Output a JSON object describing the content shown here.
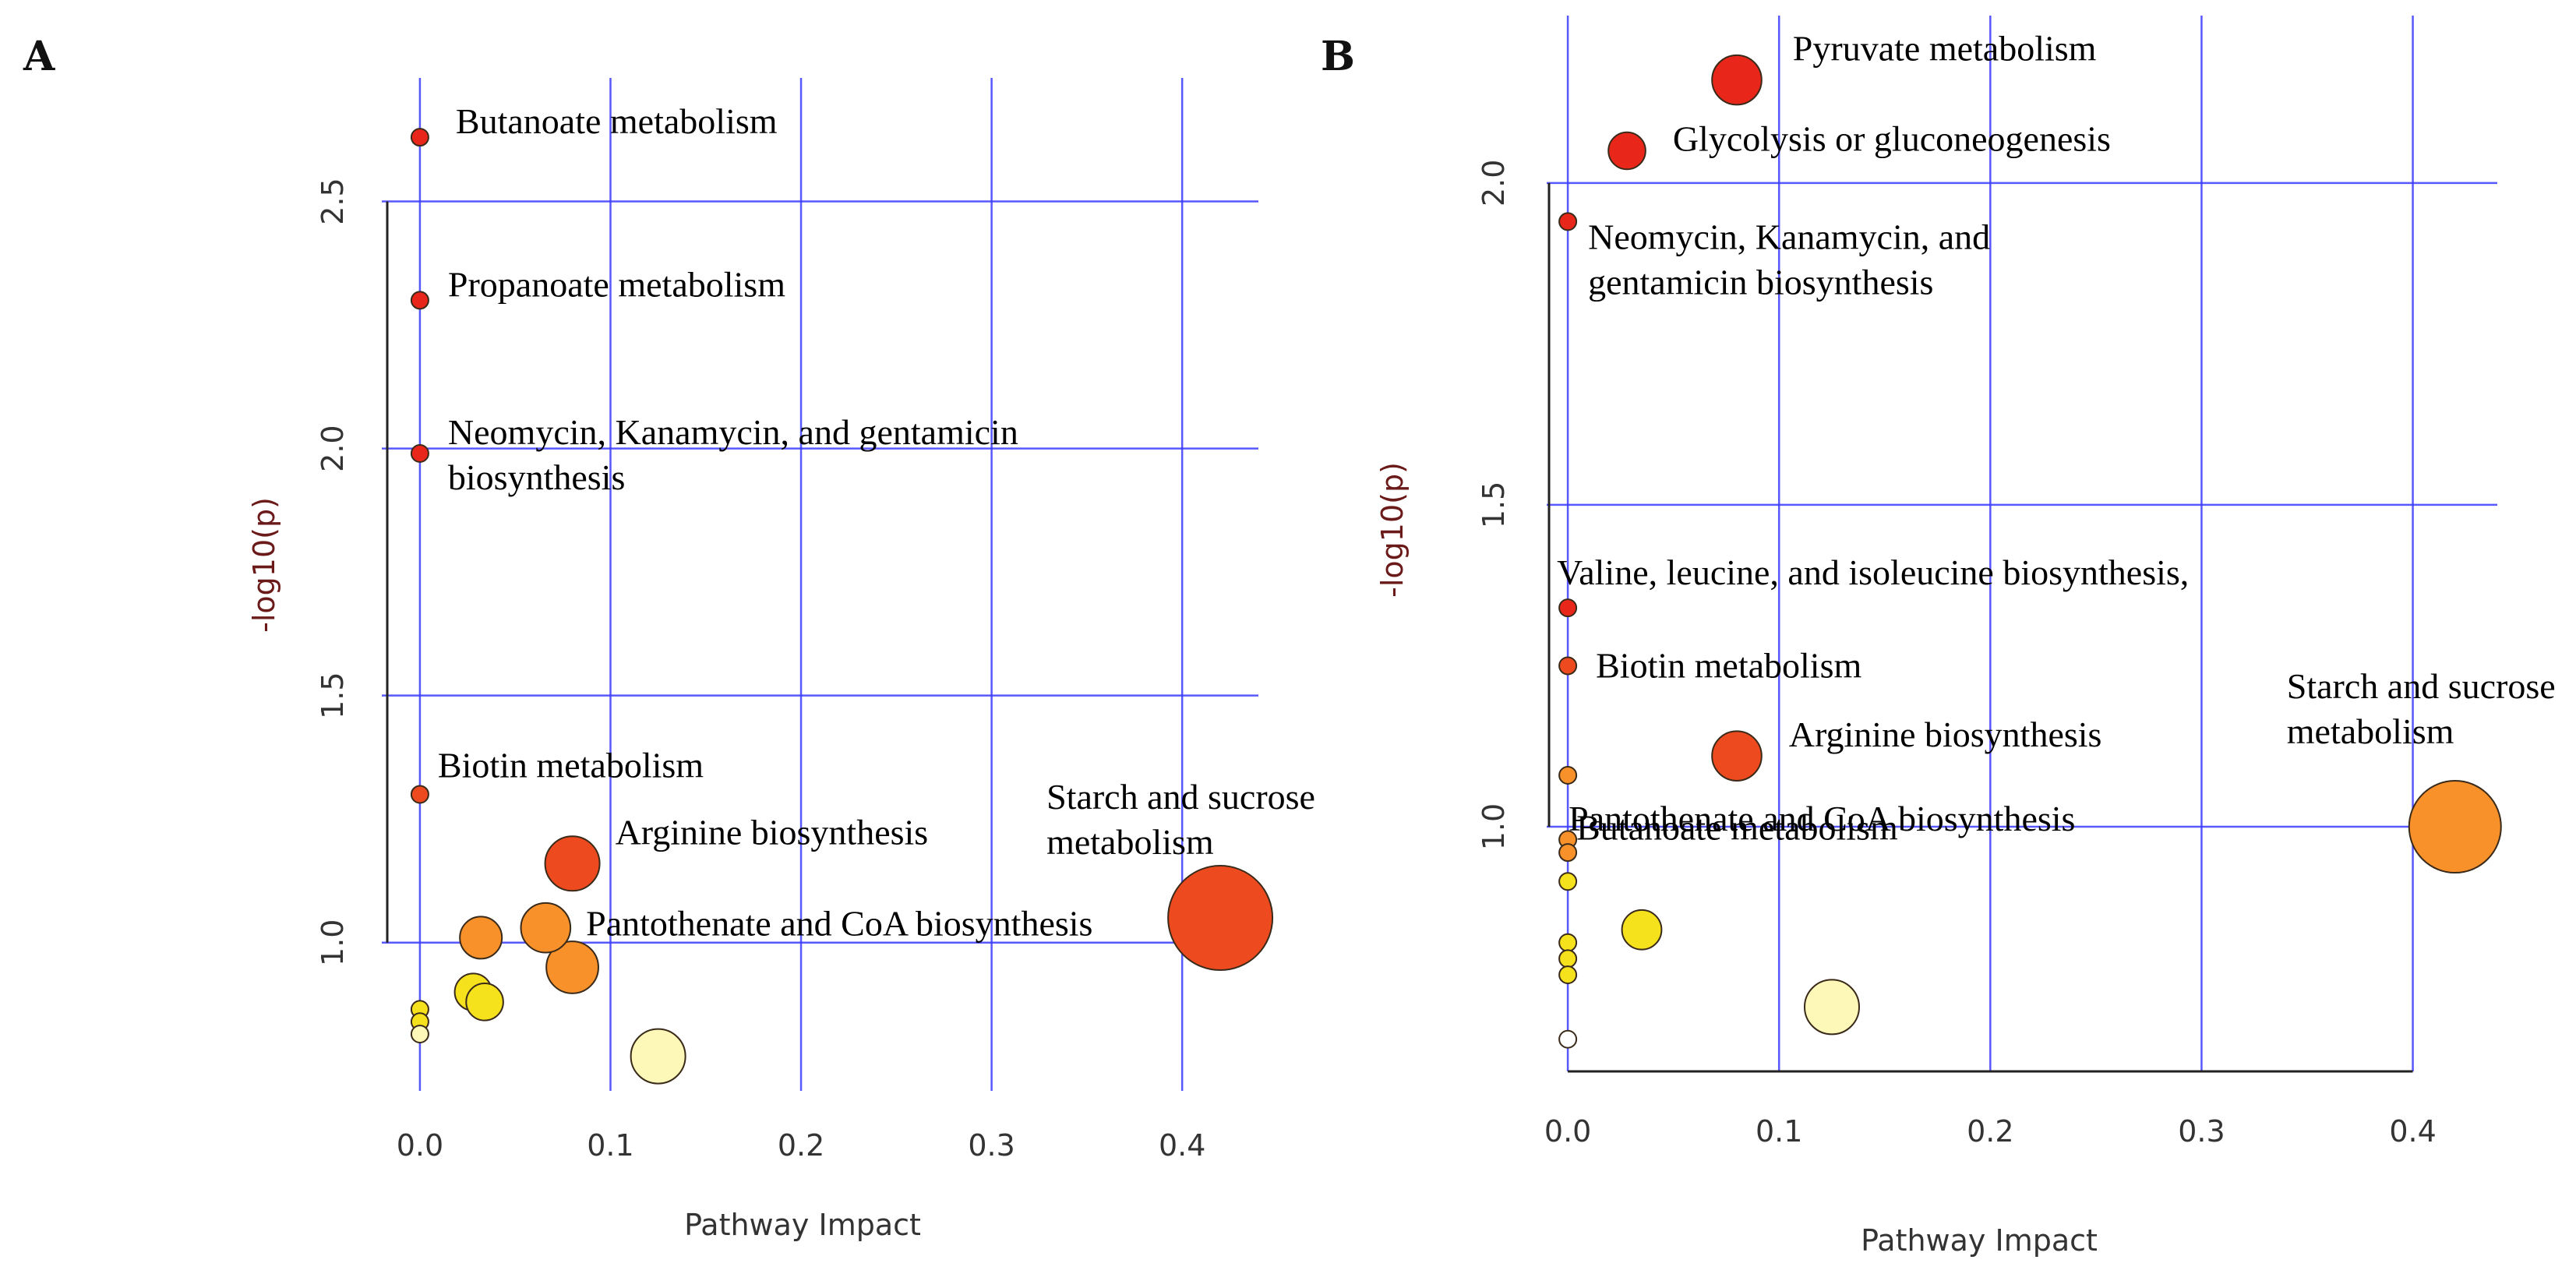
{
  "colors": {
    "grid": "#3b3bff",
    "axis": "#222222",
    "red": "#e8271a",
    "red_orange": "#ee4a1f",
    "orange": "#f8912a",
    "yellow": "#f5e11c",
    "light_yellow": "#fdf7b8",
    "white": "#ffffff"
  },
  "chart_data": [
    {
      "panel": "A",
      "type": "scatter",
      "xlabel": "Pathway Impact",
      "ylabel": "-log10(p)",
      "xlim": [
        -0.02,
        0.44
      ],
      "ylim": [
        0.7,
        2.75
      ],
      "xticks": [
        "0.0",
        "0.1",
        "0.2",
        "0.3",
        "0.4"
      ],
      "yticks": [
        "1.0",
        "1.5",
        "2.0",
        "2.5"
      ],
      "points": [
        {
          "x": 0.0,
          "y": 2.63,
          "size": 1,
          "color": "red",
          "label": [
            "Butanoate metabolism"
          ]
        },
        {
          "x": 0.0,
          "y": 2.3,
          "size": 1,
          "color": "red",
          "label": [
            "Propanoate metabolism"
          ]
        },
        {
          "x": 0.0,
          "y": 1.99,
          "size": 1,
          "color": "red",
          "label": [
            "Neomycin, Kanamycin, and gentamicin",
            "biosynthesis"
          ]
        },
        {
          "x": 0.0,
          "y": 1.3,
          "size": 1,
          "color": "red_orange",
          "label": [
            "Biotin metabolism"
          ]
        },
        {
          "x": 0.08,
          "y": 1.16,
          "size": 2.5,
          "color": "red_orange",
          "label": [
            "Arginine biosynthesis"
          ]
        },
        {
          "x": 0.42,
          "y": 1.05,
          "size": 4.5,
          "color": "red_orange",
          "label": [
            "Starch and sucrose",
            "metabolism"
          ]
        },
        {
          "x": 0.066,
          "y": 1.03,
          "size": 2.3,
          "color": "orange",
          "label": [
            "Pantothenate and CoA biosynthesis"
          ]
        },
        {
          "x": 0.032,
          "y": 1.01,
          "size": 2.0,
          "color": "orange",
          "label": []
        },
        {
          "x": 0.08,
          "y": 0.95,
          "size": 2.4,
          "color": "orange",
          "label": []
        },
        {
          "x": 0.028,
          "y": 0.9,
          "size": 1.8,
          "color": "yellow",
          "label": []
        },
        {
          "x": 0.034,
          "y": 0.88,
          "size": 1.8,
          "color": "yellow",
          "label": []
        },
        {
          "x": 0.0,
          "y": 0.865,
          "size": 1,
          "color": "yellow",
          "label": []
        },
        {
          "x": 0.0,
          "y": 0.84,
          "size": 1,
          "color": "yellow",
          "label": []
        },
        {
          "x": 0.0,
          "y": 0.815,
          "size": 1,
          "color": "light_yellow",
          "label": []
        },
        {
          "x": 0.125,
          "y": 0.77,
          "size": 2.5,
          "color": "light_yellow",
          "label": []
        }
      ]
    },
    {
      "panel": "B",
      "type": "scatter",
      "xlabel": "Pathway Impact",
      "ylabel": "-log10(p)",
      "xlim": [
        -0.01,
        0.44
      ],
      "ylim": [
        0.62,
        2.26
      ],
      "xticks": [
        "0.0",
        "0.1",
        "0.2",
        "0.3",
        "0.4"
      ],
      "yticks": [
        "1.0",
        "1.5",
        "2.0"
      ],
      "points": [
        {
          "x": 0.08,
          "y": 2.16,
          "size": 2.3,
          "color": "red",
          "label": [
            "Pyruvate metabolism"
          ]
        },
        {
          "x": 0.028,
          "y": 2.05,
          "size": 1.8,
          "color": "red",
          "label": [
            "Glycolysis or gluconeogenesis"
          ]
        },
        {
          "x": 0.0,
          "y": 1.94,
          "size": 1,
          "color": "red",
          "label": [
            "Neomycin, Kanamycin, and",
            "gentamicin biosynthesis"
          ]
        },
        {
          "x": 0.0,
          "y": 1.34,
          "size": 1,
          "color": "red",
          "label": [
            "Valine, leucine, and isoleucine biosynthesis,"
          ]
        },
        {
          "x": 0.0,
          "y": 1.25,
          "size": 1,
          "color": "red_orange",
          "label": [
            "Biotin metabolism"
          ]
        },
        {
          "x": 0.08,
          "y": 1.11,
          "size": 2.3,
          "color": "red_orange",
          "label": [
            "Arginine biosynthesis"
          ]
        },
        {
          "x": 0.42,
          "y": 1.0,
          "size": 4.0,
          "color": "orange",
          "label": [
            "Starch and sucrose",
            "metabolism"
          ]
        },
        {
          "x": 0.0,
          "y": 1.08,
          "size": 1,
          "color": "orange",
          "label": []
        },
        {
          "x": 0.0,
          "y": 0.98,
          "size": 1,
          "color": "orange",
          "label": [
            "Butanoate metabolism"
          ]
        },
        {
          "x": 0.0,
          "y": 0.96,
          "size": 1,
          "color": "orange",
          "label": [
            "Pantothenate and CoA biosynthesis"
          ]
        },
        {
          "x": 0.0,
          "y": 0.915,
          "size": 1,
          "color": "yellow",
          "label": []
        },
        {
          "x": 0.035,
          "y": 0.84,
          "size": 1.9,
          "color": "yellow",
          "label": []
        },
        {
          "x": 0.0,
          "y": 0.82,
          "size": 1,
          "color": "yellow",
          "label": []
        },
        {
          "x": 0.0,
          "y": 0.795,
          "size": 1,
          "color": "yellow",
          "label": []
        },
        {
          "x": 0.0,
          "y": 0.77,
          "size": 1,
          "color": "yellow",
          "label": []
        },
        {
          "x": 0.125,
          "y": 0.72,
          "size": 2.5,
          "color": "light_yellow",
          "label": []
        },
        {
          "x": 0.0,
          "y": 0.67,
          "size": 1,
          "color": "white",
          "label": []
        }
      ]
    }
  ]
}
